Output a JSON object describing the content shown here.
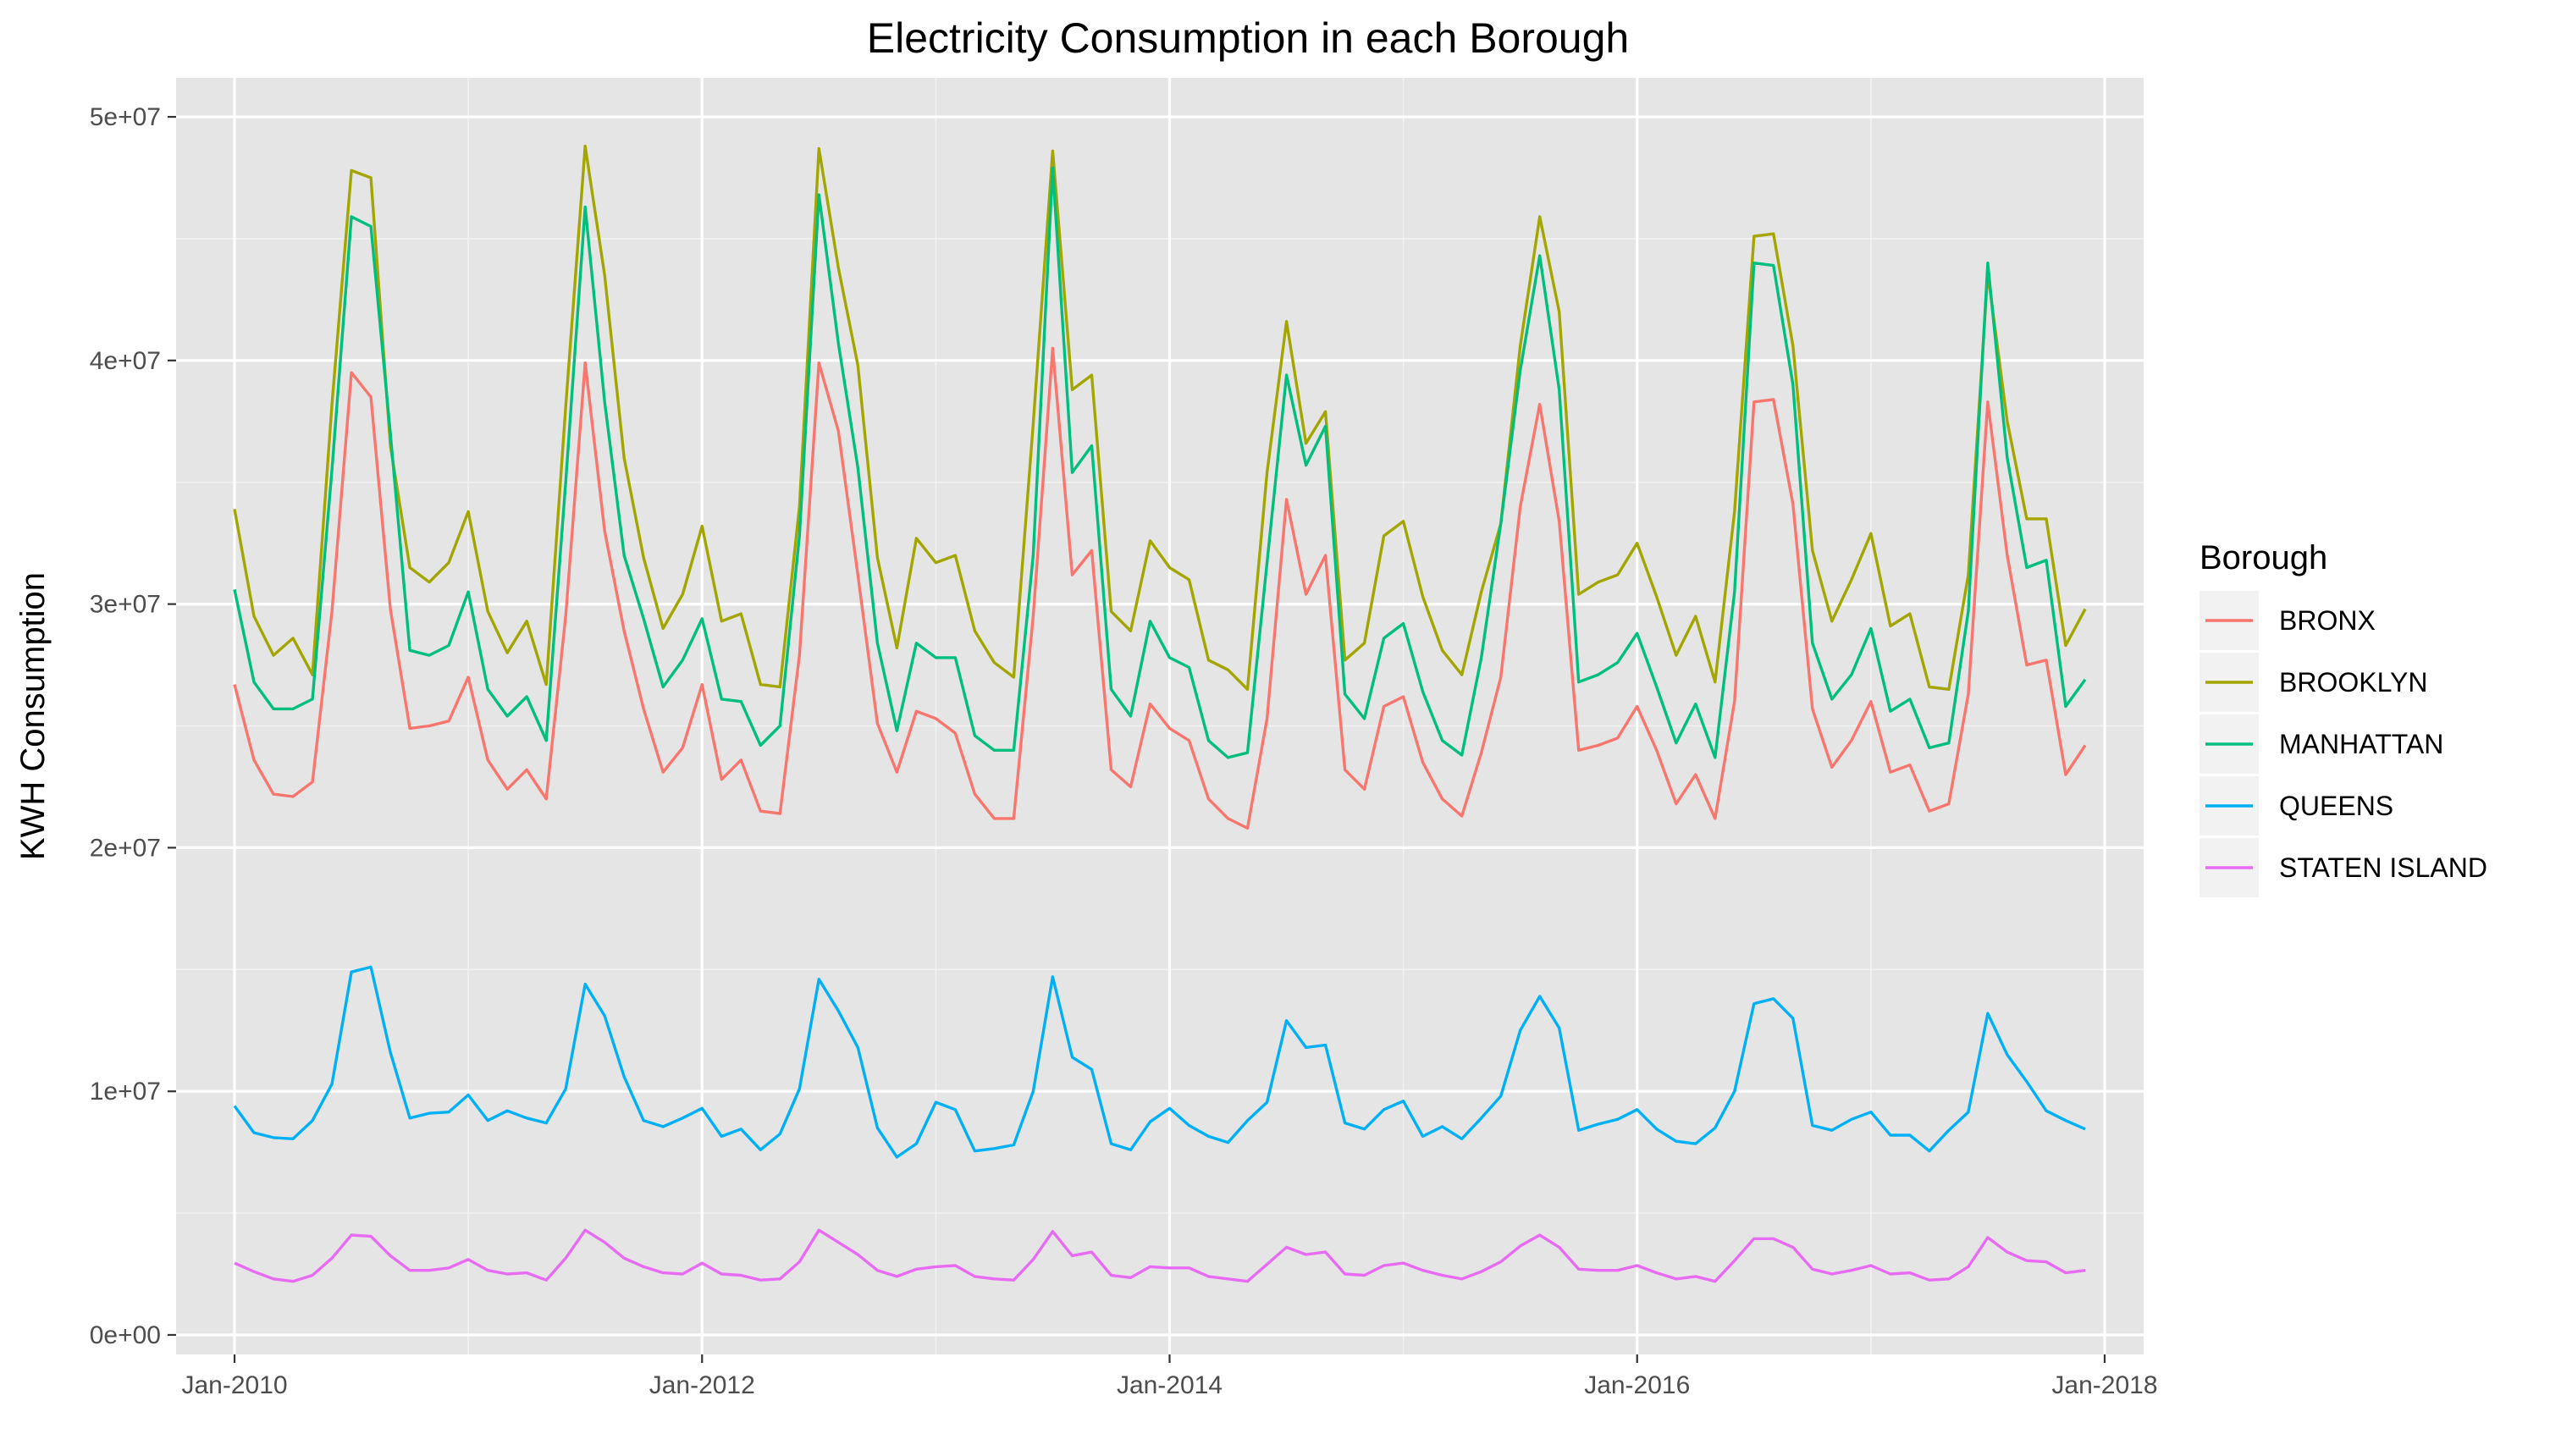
{
  "chart_data": {
    "type": "line",
    "title": "Electricity Consumption in each Borough",
    "xlabel": "",
    "ylabel": "KWH Consumption",
    "x_start": "2010-01",
    "x_frequency": "monthly",
    "xlim": [
      "2009-10",
      "2018-03"
    ],
    "ylim": [
      0,
      50000000
    ],
    "x_ticks": [
      "Jan-2010",
      "Jan-2012",
      "Jan-2014",
      "Jan-2016",
      "Jan-2018"
    ],
    "x_tick_dates": [
      "2010-01",
      "2012-01",
      "2014-01",
      "2016-01",
      "2018-01"
    ],
    "y_ticks": [
      0,
      10000000,
      20000000,
      30000000,
      40000000,
      50000000
    ],
    "y_tick_labels": [
      "0e+00",
      "1e+07",
      "2e+07",
      "3e+07",
      "4e+07",
      "5e+07"
    ],
    "grid": true,
    "background": "#e5e5e5",
    "legend": {
      "title": "Borough",
      "placement": "right"
    },
    "series": [
      {
        "name": "BRONX",
        "color": "#F8766D",
        "values": [
          26700000,
          23600000,
          22200000,
          22100000,
          22700000,
          29700000,
          39500000,
          38500000,
          29800000,
          24900000,
          25000000,
          25200000,
          27000000,
          23600000,
          22400000,
          23200000,
          22000000,
          29500000,
          39900000,
          33000000,
          28900000,
          25700000,
          23100000,
          24100000,
          26700000,
          22800000,
          23600000,
          21500000,
          21400000,
          27900000,
          39900000,
          37100000,
          31200000,
          25100000,
          23100000,
          25600000,
          25300000,
          24700000,
          22200000,
          21200000,
          21200000,
          29500000,
          40500000,
          31200000,
          32200000,
          23200000,
          22500000,
          25900000,
          24900000,
          24400000,
          22000000,
          21200000,
          20800000,
          25300000,
          34300000,
          30400000,
          32000000,
          23200000,
          22400000,
          25800000,
          26200000,
          23500000,
          22000000,
          21300000,
          23900000,
          27000000,
          34000000,
          38200000,
          33400000,
          24000000,
          24200000,
          24500000,
          25800000,
          24000000,
          21800000,
          23000000,
          21200000,
          26000000,
          38300000,
          38400000,
          34100000,
          25700000,
          23300000,
          24400000,
          26000000,
          23100000,
          23400000,
          21500000,
          21800000,
          26300000,
          38300000,
          32000000,
          27500000,
          27700000,
          23000000,
          24200000
        ]
      },
      {
        "name": "BROOKLYN",
        "color": "#A3A500",
        "values": [
          33900000,
          29500000,
          27900000,
          28600000,
          27100000,
          38200000,
          47800000,
          47500000,
          36500000,
          31500000,
          30900000,
          31700000,
          33800000,
          29700000,
          28000000,
          29300000,
          26700000,
          38100000,
          48800000,
          43500000,
          36000000,
          31900000,
          29000000,
          30400000,
          33200000,
          29300000,
          29600000,
          26700000,
          26600000,
          34000000,
          48700000,
          43800000,
          39800000,
          31900000,
          28200000,
          32700000,
          31700000,
          32000000,
          28900000,
          27600000,
          27000000,
          37400000,
          48600000,
          38800000,
          39400000,
          29700000,
          28900000,
          32600000,
          31500000,
          31000000,
          27700000,
          27300000,
          26500000,
          35400000,
          41600000,
          36600000,
          37900000,
          27700000,
          28400000,
          32800000,
          33400000,
          30300000,
          28100000,
          27100000,
          30500000,
          33300000,
          40600000,
          45900000,
          42000000,
          30400000,
          30900000,
          31200000,
          32500000,
          30300000,
          27900000,
          29500000,
          26800000,
          33800000,
          45100000,
          45200000,
          40600000,
          32200000,
          29300000,
          31000000,
          32900000,
          29100000,
          29600000,
          26600000,
          26500000,
          31200000,
          43600000,
          37500000,
          33500000,
          33500000,
          28300000,
          29800000
        ]
      },
      {
        "name": "MANHATTAN",
        "color": "#00BF7D",
        "values": [
          30600000,
          26800000,
          25700000,
          25700000,
          26100000,
          35500000,
          45900000,
          45500000,
          37000000,
          28100000,
          27900000,
          28300000,
          30500000,
          26500000,
          25400000,
          26200000,
          24400000,
          35000000,
          46300000,
          38300000,
          32000000,
          29400000,
          26600000,
          27700000,
          29400000,
          26100000,
          26000000,
          24200000,
          25000000,
          32800000,
          46800000,
          40700000,
          35600000,
          28400000,
          24800000,
          28400000,
          27800000,
          27800000,
          24600000,
          24000000,
          24000000,
          32000000,
          47900000,
          35400000,
          36500000,
          26500000,
          25400000,
          29300000,
          27800000,
          27400000,
          24400000,
          23700000,
          23900000,
          31700000,
          39400000,
          35700000,
          37300000,
          26300000,
          25300000,
          28600000,
          29200000,
          26400000,
          24400000,
          23800000,
          27800000,
          33300000,
          39600000,
          44300000,
          38800000,
          26800000,
          27100000,
          27600000,
          28800000,
          26600000,
          24300000,
          25900000,
          23700000,
          30500000,
          44000000,
          43900000,
          39000000,
          28400000,
          26100000,
          27100000,
          29000000,
          25600000,
          26100000,
          24100000,
          24300000,
          29700000,
          44000000,
          36000000,
          31500000,
          31800000,
          25800000,
          26900000
        ]
      },
      {
        "name": "QUEENS",
        "color": "#00B0F6",
        "values": [
          9400000,
          8300000,
          8100000,
          8050000,
          8800000,
          10300000,
          14900000,
          15100000,
          11600000,
          8900000,
          9100000,
          9150000,
          9850000,
          8800000,
          9200000,
          8900000,
          8700000,
          10100000,
          14400000,
          13100000,
          10600000,
          8800000,
          8550000,
          8900000,
          9300000,
          8150000,
          8450000,
          7600000,
          8250000,
          10100000,
          14600000,
          13300000,
          11800000,
          8500000,
          7300000,
          7850000,
          9550000,
          9250000,
          7550000,
          7650000,
          7800000,
          10000000,
          14700000,
          11400000,
          10900000,
          7850000,
          7600000,
          8750000,
          9300000,
          8600000,
          8150000,
          7900000,
          8800000,
          9550000,
          12900000,
          11800000,
          11900000,
          8700000,
          8450000,
          9250000,
          9600000,
          8150000,
          8550000,
          8050000,
          8900000,
          9800000,
          12500000,
          13900000,
          12600000,
          8400000,
          8650000,
          8850000,
          9250000,
          8450000,
          7950000,
          7850000,
          8500000,
          10000000,
          13600000,
          13800000,
          13000000,
          8600000,
          8400000,
          8850000,
          9150000,
          8200000,
          8200000,
          7550000,
          8400000,
          9150000,
          13200000,
          11500000,
          10400000,
          9200000,
          8800000,
          8450000
        ]
      },
      {
        "name": "STATEN ISLAND",
        "color": "#E76BF3",
        "values": [
          2950000,
          2600000,
          2300000,
          2200000,
          2450000,
          3150000,
          4100000,
          4050000,
          3250000,
          2650000,
          2650000,
          2750000,
          3100000,
          2650000,
          2500000,
          2550000,
          2250000,
          3150000,
          4300000,
          3800000,
          3150000,
          2800000,
          2550000,
          2500000,
          2950000,
          2500000,
          2450000,
          2250000,
          2300000,
          3000000,
          4300000,
          3800000,
          3300000,
          2650000,
          2400000,
          2700000,
          2800000,
          2850000,
          2400000,
          2300000,
          2250000,
          3100000,
          4250000,
          3250000,
          3400000,
          2450000,
          2350000,
          2800000,
          2750000,
          2750000,
          2400000,
          2300000,
          2200000,
          2900000,
          3600000,
          3300000,
          3400000,
          2500000,
          2450000,
          2850000,
          2950000,
          2650000,
          2450000,
          2300000,
          2600000,
          3000000,
          3650000,
          4100000,
          3600000,
          2700000,
          2650000,
          2650000,
          2850000,
          2550000,
          2300000,
          2400000,
          2200000,
          3050000,
          3950000,
          3950000,
          3600000,
          2700000,
          2500000,
          2650000,
          2850000,
          2500000,
          2550000,
          2250000,
          2300000,
          2800000,
          4000000,
          3400000,
          3050000,
          3000000,
          2550000,
          2650000
        ]
      }
    ]
  }
}
